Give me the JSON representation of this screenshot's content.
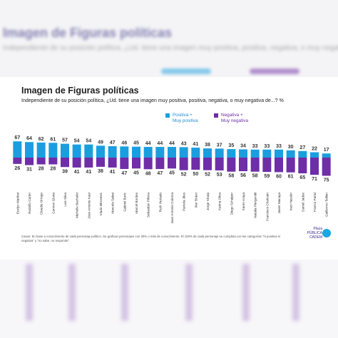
{
  "chart_data": {
    "type": "bar",
    "title": "Imagen de Figuras políticas",
    "subtitle": "Independiente de su posición política, ¿Ud. tiene una imagen muy positiva, positiva, negativa, o muy negativa de...? %",
    "categories": [
      "Evelyn Matthei",
      "Rodolfo Carter",
      "Claudio Orrego",
      "Carmen Gloria",
      "Luis Silva",
      "Michelle Bachelet",
      "José Antonio Kast",
      "Vlado Mirosevic",
      "Marcela Sabat",
      "Gabriel Boric",
      "Marcel Bordes",
      "Sebastián Piñera",
      "Ruth Hurtado",
      "Juan Antonio Coloma",
      "Pamela Jiles",
      "Iker Bravo",
      "Jorge Sharp",
      "Karina Oliva",
      "Diego Schalper",
      "Karen Araya",
      "Natalia Piergentili",
      "Francisco Chahuán",
      "Javier Macaya",
      "Iraci Hassler",
      "Daniel Jadue",
      "Franco Parisi",
      "Guillermo Teillier"
    ],
    "series": [
      {
        "name": "Positiva + Muy positiva",
        "color": "#1a9ee0",
        "values": [
          67,
          64,
          62,
          61,
          57,
          54,
          54,
          49,
          47,
          46,
          45,
          44,
          44,
          44,
          43,
          41,
          38,
          37,
          35,
          34,
          33,
          33,
          33,
          30,
          27,
          22,
          17
        ]
      },
      {
        "name": "Negativa + Muy negativa",
        "color": "#6f2da8",
        "values": [
          26,
          31,
          28,
          28,
          39,
          41,
          41,
          38,
          41,
          47,
          45,
          48,
          47,
          45,
          52,
          50,
          52,
          53,
          58,
          56,
          58,
          59,
          60,
          61,
          65,
          71,
          75
        ]
      }
    ],
    "legend_position": "top-right"
  },
  "legend": {
    "pos": "Positiva +\nMuy positiva",
    "neg": "Negativa +\nMuy negativa"
  },
  "header": {
    "blur_title": "Imagen de Figuras políticas",
    "blur_sub": "Independiente de su posición política, ¿Ud. tiene una imagen muy positiva, positiva, negativa, o muy negativa de...?"
  },
  "footer": {
    "note": "Casos: En base a conocimiento de cada personaje político. Se grafican personajes con 30% o más de conocimiento. El 100% de cada personaje se completa con las categorías \"ni positiva ni negativa\" y \"no sabe, no responde\".",
    "logo": "Plaza\nPÚBLICA\nCADEM"
  }
}
